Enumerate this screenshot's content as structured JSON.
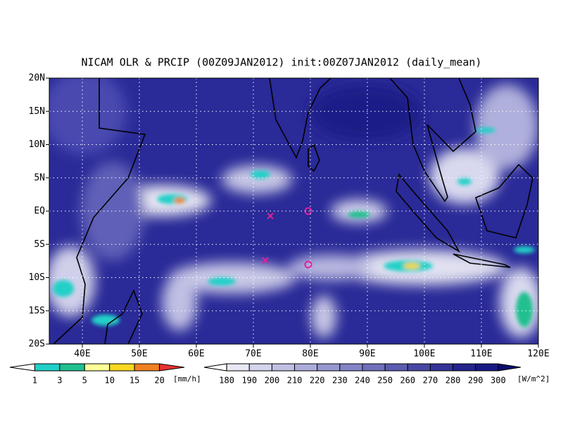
{
  "map": {
    "title": "NICAM OLR & PRCIP (00Z09JAN2012) init:00Z07JAN2012 (daily_mean)",
    "xlim": [
      34.2,
      120
    ],
    "ylim": [
      -20,
      20
    ],
    "lon_ticks": [
      {
        "value": 40,
        "label": "40E"
      },
      {
        "value": 50,
        "label": "50E"
      },
      {
        "value": 60,
        "label": "60E"
      },
      {
        "value": 70,
        "label": "70E"
      },
      {
        "value": 80,
        "label": "80E"
      },
      {
        "value": 90,
        "label": "90E"
      },
      {
        "value": 100,
        "label": "100E"
      },
      {
        "value": 110,
        "label": "110E"
      },
      {
        "value": 120,
        "label": "120E"
      }
    ],
    "lat_ticks": [
      {
        "value": 20,
        "label": "20N"
      },
      {
        "value": 15,
        "label": "15N"
      },
      {
        "value": 10,
        "label": "10N"
      },
      {
        "value": 5,
        "label": "5N"
      },
      {
        "value": 0,
        "label": "EQ"
      },
      {
        "value": -5,
        "label": "5S"
      },
      {
        "value": -10,
        "label": "10S"
      },
      {
        "value": -15,
        "label": "15S"
      },
      {
        "value": -20,
        "label": "20S"
      }
    ],
    "grid": true,
    "precip_colorbar": {
      "labels": [
        1,
        3,
        5,
        10,
        15,
        20
      ],
      "unit": "[mm/h]",
      "colors": [
        "#ffffff",
        "#20d0c8",
        "#20c090",
        "#ffff98",
        "#f8d820",
        "#f08020",
        "#e83030"
      ]
    },
    "olr_colorbar": {
      "labels": [
        180,
        190,
        200,
        210,
        220,
        230,
        240,
        250,
        260,
        270,
        280,
        290,
        300
      ],
      "unit": "[W/m^2]",
      "colors": [
        "#ffffff",
        "#e8e8f4",
        "#d4d4ec",
        "#c0c0e4",
        "#acacdc",
        "#9898d0",
        "#8484c8",
        "#7070bc",
        "#5c5cb0",
        "#4848a4",
        "#343498",
        "#24248c",
        "#181884",
        "#0c0c70"
      ]
    }
  }
}
